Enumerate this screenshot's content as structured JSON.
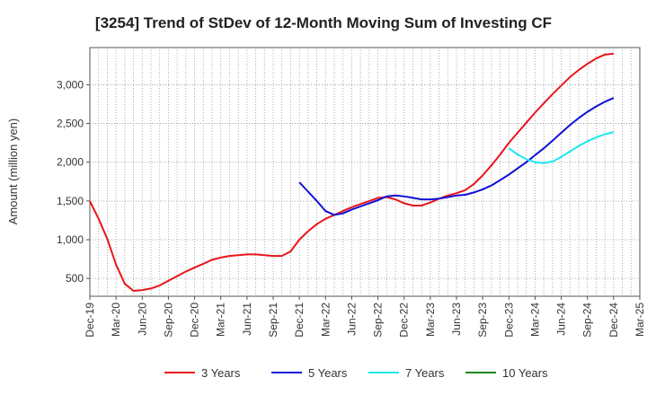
{
  "chart_data": {
    "type": "line",
    "title": "[3254]  Trend of StDev of 12-Month Moving Sum of Investing CF",
    "xlabel": "",
    "ylabel": "Amount (million yen)",
    "ylim": [
      270,
      3480
    ],
    "yticks": [
      500,
      1000,
      1500,
      2000,
      2500,
      3000
    ],
    "ytick_labels": [
      "500",
      "1,000",
      "1,500",
      "2,000",
      "2,500",
      "3,000"
    ],
    "xticks": [
      "Dec-19",
      "Mar-20",
      "Jun-20",
      "Sep-20",
      "Dec-20",
      "Mar-21",
      "Jun-21",
      "Sep-21",
      "Dec-21",
      "Mar-22",
      "Jun-22",
      "Sep-22",
      "Dec-22",
      "Mar-23",
      "Jun-23",
      "Sep-23",
      "Dec-23",
      "Mar-24",
      "Jun-24",
      "Sep-24",
      "Dec-24",
      "Mar-25"
    ],
    "grid": true,
    "legend_position": "bottom",
    "series": [
      {
        "name": "3 Years",
        "color": "#e8161b",
        "x": [
          "Dec-19",
          "Jan-20",
          "Feb-20",
          "Mar-20",
          "Apr-20",
          "May-20",
          "Jun-20",
          "Jul-20",
          "Aug-20",
          "Sep-20",
          "Oct-20",
          "Nov-20",
          "Dec-20",
          "Jan-21",
          "Feb-21",
          "Mar-21",
          "Apr-21",
          "May-21",
          "Jun-21",
          "Jul-21",
          "Aug-21",
          "Sep-21",
          "Oct-21",
          "Nov-21",
          "Dec-21",
          "Jan-22",
          "Feb-22",
          "Mar-22",
          "Apr-22",
          "May-22",
          "Jun-22",
          "Jul-22",
          "Aug-22",
          "Sep-22",
          "Oct-22",
          "Nov-22",
          "Dec-22",
          "Jan-23",
          "Feb-23",
          "Mar-23",
          "Apr-23",
          "May-23",
          "Jun-23",
          "Jul-23",
          "Aug-23",
          "Sep-23",
          "Oct-23",
          "Nov-23",
          "Dec-23",
          "Jan-24",
          "Feb-24",
          "Mar-24",
          "Apr-24",
          "May-24",
          "Jun-24",
          "Jul-24",
          "Aug-24",
          "Sep-24",
          "Oct-24",
          "Nov-24",
          "Dec-24"
        ],
        "values": [
          1500,
          1270,
          1010,
          680,
          430,
          340,
          350,
          370,
          410,
          470,
          530,
          590,
          640,
          690,
          740,
          770,
          790,
          800,
          810,
          810,
          800,
          790,
          790,
          850,
          1000,
          1110,
          1200,
          1270,
          1320,
          1370,
          1420,
          1460,
          1500,
          1540,
          1550,
          1520,
          1470,
          1440,
          1440,
          1480,
          1530,
          1570,
          1600,
          1640,
          1720,
          1830,
          1960,
          2100,
          2250,
          2380,
          2510,
          2640,
          2760,
          2880,
          2990,
          3100,
          3190,
          3270,
          3340,
          3390,
          3400
        ]
      },
      {
        "name": "5 Years",
        "color": "#1010d8",
        "x": [
          "Dec-21",
          "Jan-22",
          "Feb-22",
          "Mar-22",
          "Apr-22",
          "May-22",
          "Jun-22",
          "Jul-22",
          "Aug-22",
          "Sep-22",
          "Oct-22",
          "Nov-22",
          "Dec-22",
          "Jan-23",
          "Feb-23",
          "Mar-23",
          "Apr-23",
          "May-23",
          "Jun-23",
          "Jul-23",
          "Aug-23",
          "Sep-23",
          "Oct-23",
          "Nov-23",
          "Dec-23",
          "Jan-24",
          "Feb-24",
          "Mar-24",
          "Apr-24",
          "May-24",
          "Jun-24",
          "Jul-24",
          "Aug-24",
          "Sep-24",
          "Oct-24",
          "Nov-24",
          "Dec-24"
        ],
        "values": [
          1740,
          1620,
          1500,
          1370,
          1320,
          1340,
          1390,
          1430,
          1470,
          1510,
          1560,
          1570,
          1560,
          1540,
          1520,
          1520,
          1530,
          1550,
          1570,
          1580,
          1610,
          1650,
          1700,
          1770,
          1840,
          1920,
          2000,
          2090,
          2180,
          2280,
          2380,
          2480,
          2570,
          2650,
          2720,
          2780,
          2830
        ]
      },
      {
        "name": "7 Years",
        "color": "#1ee8f0",
        "x": [
          "Dec-23",
          "Jan-24",
          "Feb-24",
          "Mar-24",
          "Apr-24",
          "May-24",
          "Jun-24",
          "Jul-24",
          "Aug-24",
          "Sep-24",
          "Oct-24",
          "Nov-24",
          "Dec-24"
        ],
        "values": [
          2180,
          2100,
          2040,
          2000,
          1990,
          2010,
          2070,
          2140,
          2210,
          2270,
          2320,
          2360,
          2390
        ]
      },
      {
        "name": "10 Years",
        "color": "#1a8a1a",
        "x": [],
        "values": []
      }
    ]
  }
}
